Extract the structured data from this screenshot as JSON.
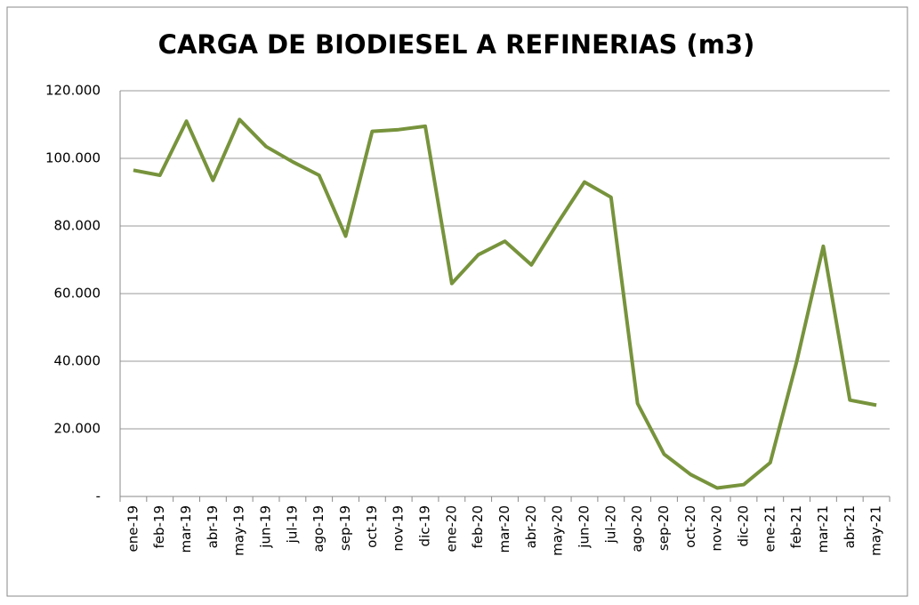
{
  "chart_data": {
    "type": "line",
    "title": "CARGA DE BIODIESEL A REFINERIAS (m3)",
    "categories": [
      "ene-19",
      "feb-19",
      "mar-19",
      "abr-19",
      "may-19",
      "jun-19",
      "jul-19",
      "ago-19",
      "sep-19",
      "oct-19",
      "nov-19",
      "dic-19",
      "ene-20",
      "feb-20",
      "mar-20",
      "abr-20",
      "may-20",
      "jun-20",
      "jul-20",
      "ago-20",
      "sep-20",
      "oct-20",
      "nov-20",
      "dic-20",
      "ene-21",
      "feb-21",
      "mar-21",
      "abr-21",
      "may-21"
    ],
    "series": [
      {
        "name": "Carga de biodiesel",
        "color": "#77933c",
        "values": [
          96500,
          95000,
          111000,
          93500,
          111500,
          103500,
          99000,
          95000,
          77000,
          108000,
          108500,
          109500,
          63000,
          71500,
          75500,
          68500,
          81000,
          93000,
          88500,
          27500,
          12500,
          6500,
          2500,
          3500,
          10000,
          40000,
          74000,
          28500,
          27000
        ]
      }
    ],
    "ylim": [
      0,
      120000
    ],
    "yticks": [
      {
        "value": 0,
        "label": "-"
      },
      {
        "value": 20000,
        "label": "20.000"
      },
      {
        "value": 40000,
        "label": "40.000"
      },
      {
        "value": 60000,
        "label": "60.000"
      },
      {
        "value": 80000,
        "label": "80.000"
      },
      {
        "value": 100000,
        "label": "100.000"
      },
      {
        "value": 120000,
        "label": "120.000"
      }
    ],
    "grid": true
  }
}
